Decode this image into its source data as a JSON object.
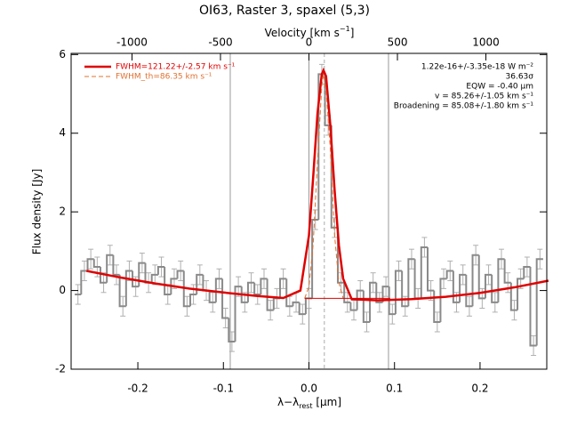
{
  "chart_data": {
    "type": "line",
    "title": "OI63, Raster 3, spaxel (5,3)",
    "x2_label": [
      "Velocity [km s",
      "−1",
      "]"
    ],
    "x_label": [
      "λ−λ",
      "rest",
      " [μm]"
    ],
    "y_label": "Flux density [Jy]",
    "xlim": [
      -0.278,
      0.278
    ],
    "xticks": [
      -0.2,
      -0.1,
      {
        "value": 0,
        "label": "0.0"
      },
      0.1,
      0.2
    ],
    "x2lim": [
      -1344,
      1344
    ],
    "x2ticks": [
      -1000,
      -500,
      0,
      500,
      1000
    ],
    "ylim": [
      -2,
      6.03
    ],
    "yticks": [
      -2,
      0,
      2,
      4,
      6
    ],
    "vlines": [
      -0.092,
      0.0,
      0.093
    ],
    "center_line": 0.018,
    "legend": "upper left",
    "annotations": [
      "1.22e-16+/-3.35e-18 W m⁻²",
      "36.63σ",
      "EQW = -0.40 μm",
      "v = 85.26+/-1.05 km s⁻¹",
      "Broadening = 85.08+/-1.80 km s⁻¹"
    ],
    "series": [
      {
        "style": "step",
        "color": "#8a8a8a",
        "error_color": "#b0b0b0",
        "error": 0.25,
        "x": [
          -0.27,
          -0.2625,
          -0.255,
          -0.2475,
          -0.24,
          -0.2325,
          -0.225,
          -0.2175,
          -0.21,
          -0.2025,
          -0.195,
          -0.1875,
          -0.18,
          -0.1725,
          -0.165,
          -0.1575,
          -0.15,
          -0.1425,
          -0.135,
          -0.1275,
          -0.12,
          -0.1125,
          -0.105,
          -0.0975,
          -0.09,
          -0.0825,
          -0.075,
          -0.0675,
          -0.06,
          -0.0525,
          -0.045,
          -0.0375,
          -0.03,
          -0.0225,
          -0.015,
          -0.0075,
          0.0,
          0.0075,
          0.015,
          0.0225,
          0.03,
          0.0375,
          0.045,
          0.0525,
          0.06,
          0.0675,
          0.075,
          0.0825,
          0.09,
          0.0975,
          0.105,
          0.1125,
          0.12,
          0.1275,
          0.135,
          0.1425,
          0.15,
          0.1575,
          0.165,
          0.1725,
          0.18,
          0.1875,
          0.195,
          0.2025,
          0.21,
          0.2175,
          0.225,
          0.2325,
          0.24,
          0.2475,
          0.255,
          0.2625,
          0.27
        ],
        "values": [
          -0.1,
          0.5,
          0.8,
          0.6,
          0.2,
          0.9,
          0.4,
          -0.4,
          0.5,
          0.1,
          0.7,
          0.2,
          0.4,
          0.6,
          -0.1,
          0.3,
          0.5,
          -0.4,
          -0.1,
          0.4,
          0.0,
          -0.3,
          0.3,
          -0.7,
          -1.3,
          0.1,
          -0.3,
          0.2,
          -0.1,
          0.3,
          -0.5,
          -0.2,
          0.3,
          -0.4,
          -0.3,
          -0.6,
          -0.2,
          1.8,
          5.5,
          4.2,
          1.6,
          0.2,
          -0.3,
          -0.5,
          0.0,
          -0.8,
          0.2,
          -0.3,
          0.1,
          -0.6,
          0.5,
          -0.4,
          0.8,
          -0.2,
          1.1,
          0.0,
          -0.8,
          0.3,
          0.5,
          -0.3,
          0.4,
          -0.4,
          0.9,
          -0.2,
          0.4,
          -0.3,
          0.8,
          0.2,
          -0.5,
          0.3,
          0.6,
          -1.4,
          0.8
        ]
      },
      {
        "name": "FWHM=121.22+/-2.57 km s⁻¹",
        "style": "solid",
        "width": 2.5,
        "color": "#e00000",
        "x": [
          -0.26,
          -0.22,
          -0.18,
          -0.14,
          -0.1,
          -0.06,
          -0.03,
          -0.01,
          0.0,
          0.005,
          0.01,
          0.015,
          0.017,
          0.02,
          0.025,
          0.03,
          0.035,
          0.04,
          0.05,
          0.08,
          0.12,
          0.16,
          0.2,
          0.24,
          0.28
        ],
        "values": [
          0.5,
          0.33,
          0.18,
          0.05,
          -0.05,
          -0.14,
          -0.19,
          0.0,
          1.4,
          2.9,
          4.5,
          5.5,
          5.6,
          5.45,
          4.2,
          2.55,
          1.15,
          0.3,
          -0.22,
          -0.25,
          -0.22,
          -0.16,
          -0.06,
          0.08,
          0.25
        ]
      },
      {
        "name": "FWHM_th=86.35 km s⁻¹",
        "style": "dashed",
        "width": 1,
        "color": "#e07030",
        "x": [
          -0.005,
          0.0,
          0.005,
          0.01,
          0.015,
          0.017,
          0.02,
          0.025,
          0.03,
          0.035,
          0.04
        ],
        "values": [
          -0.2,
          0.1,
          1.2,
          3.3,
          5.2,
          5.5,
          5.1,
          3.6,
          1.4,
          0.2,
          -0.2
        ]
      },
      {
        "style": "solid",
        "width": 1,
        "color": "#e00000",
        "x": [
          -0.005,
          0.095
        ],
        "values": [
          -0.2,
          -0.2
        ]
      }
    ]
  }
}
